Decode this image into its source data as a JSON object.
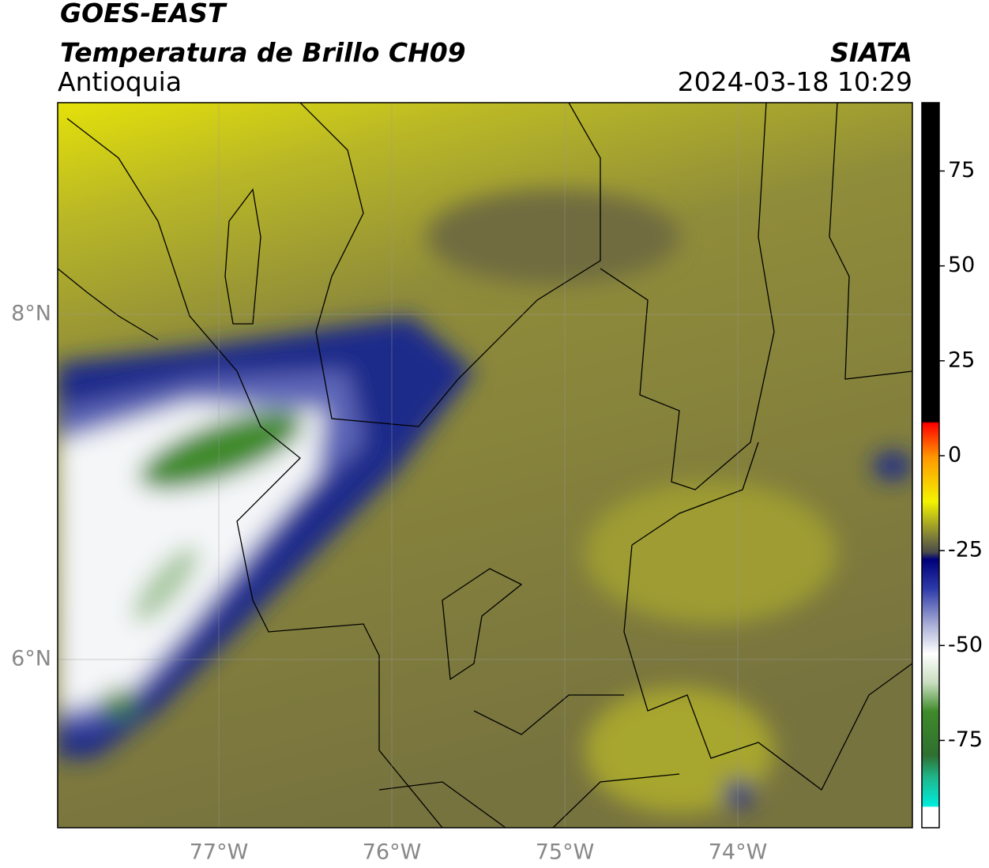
{
  "header": {
    "title": "GOES-EAST",
    "subtitle": "Temperatura de Brillo CH09",
    "region": "Antioquia",
    "source": "SIATA",
    "timestamp": "2024-03-18 10:29"
  },
  "map": {
    "lat_labels": [
      "8°N",
      "6°N"
    ],
    "lon_labels": [
      "77°W",
      "76°W",
      "75°W",
      "74°W"
    ]
  },
  "colorbar": {
    "lim": [
      -98,
      93
    ],
    "ticks": [
      75,
      50,
      25,
      0,
      -25,
      -50,
      -75
    ]
  }
}
